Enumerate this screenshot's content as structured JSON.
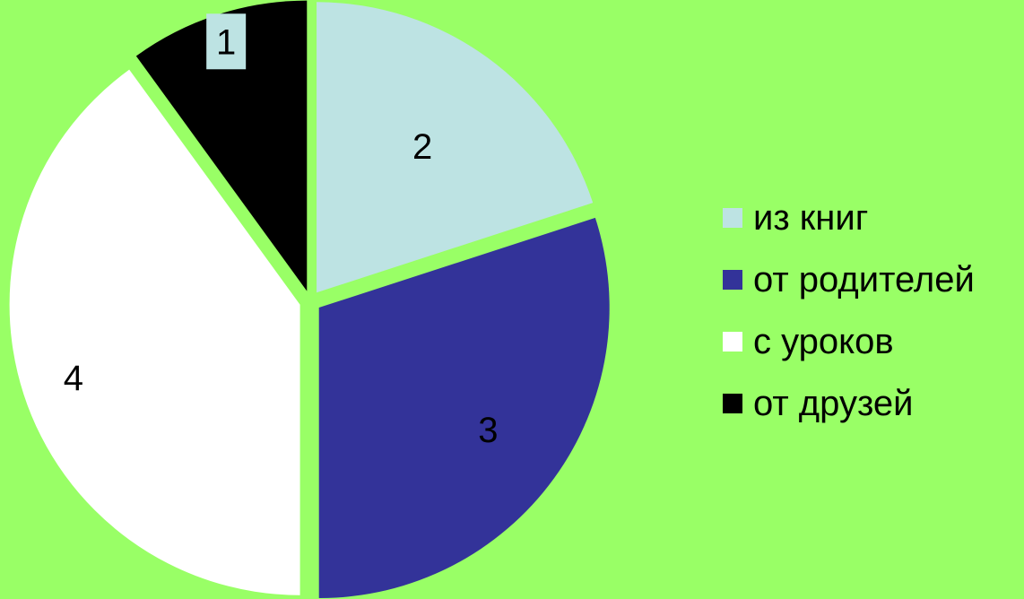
{
  "background_color": "#99ff66",
  "chart_data": {
    "type": "pie",
    "title": "",
    "categories": [
      "из книг",
      "от родителей",
      "с уроков",
      "от друзей"
    ],
    "values": [
      20,
      30,
      40,
      10
    ],
    "slice_labels": [
      "2",
      "3",
      "4",
      "1"
    ],
    "colors": [
      "#bde3e3",
      "#333399",
      "#ffffff",
      "#000000"
    ],
    "start_angle_deg": 0,
    "direction": "clockwise",
    "exploded": true,
    "legend": {
      "position": "right",
      "entries": [
        "из книг",
        "от родителей",
        "с уроков",
        "от друзей"
      ]
    }
  }
}
